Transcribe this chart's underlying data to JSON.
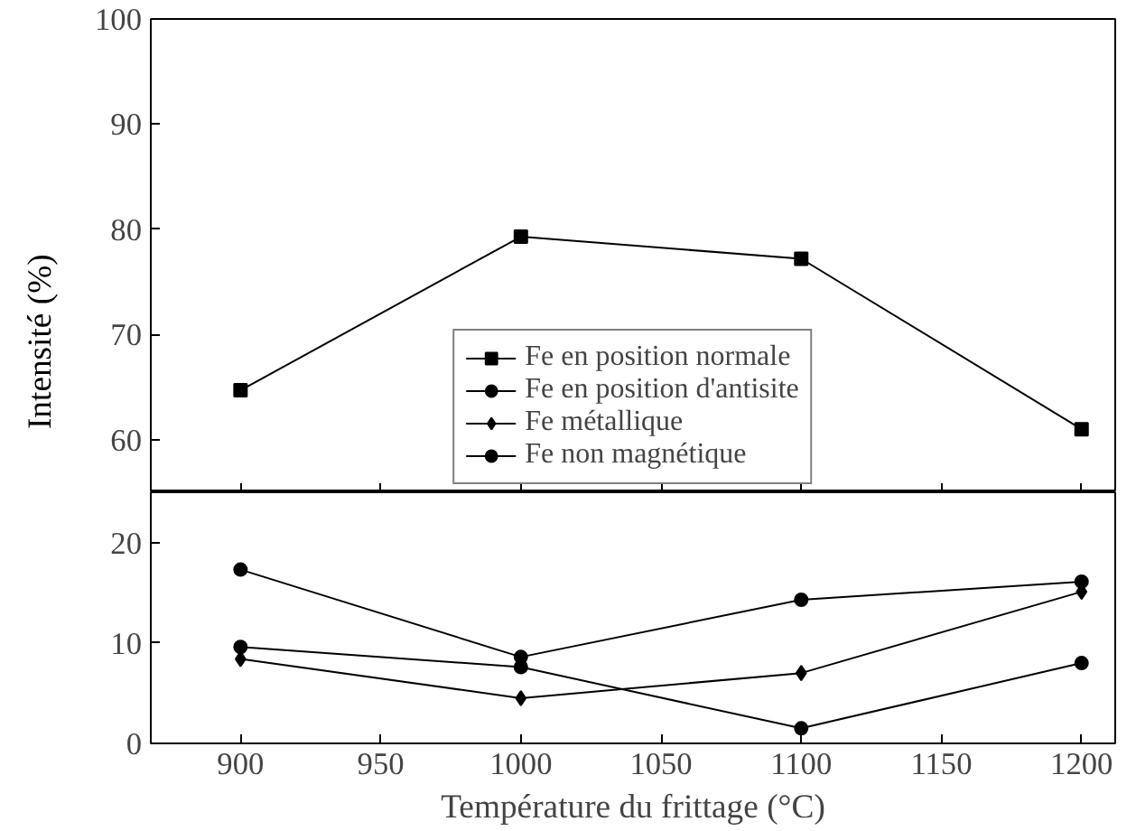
{
  "chart_data": [
    {
      "type": "line",
      "x": [
        900,
        1000,
        1100,
        1200
      ],
      "xlim": [
        868,
        1212
      ],
      "xticks": [
        900,
        950,
        1000,
        1050,
        1100,
        1150,
        1200
      ],
      "ylim": [
        55,
        100
      ],
      "yticks": [
        60,
        70,
        80,
        90,
        100
      ],
      "tick_labels": "y",
      "ylabel": "Intensité (%)",
      "legend": "bottom center",
      "line_style": "solid",
      "series": [
        {
          "name": "Fe en position normale",
          "color": "#000000",
          "marker": "square",
          "values": [
            64.7,
            79.3,
            77.2,
            61.0
          ]
        }
      ]
    },
    {
      "type": "line",
      "x": [
        900,
        1000,
        1100,
        1200
      ],
      "xlim": [
        868,
        1212
      ],
      "xticks": [
        900,
        950,
        1000,
        1050,
        1100,
        1150,
        1200
      ],
      "ylim": [
        0,
        25
      ],
      "yticks": [
        0,
        10,
        20
      ],
      "xlabel": "Température du frittage (°C)",
      "legend": "top",
      "line_style": "solid",
      "series": [
        {
          "name": "Fe en position d'antisite",
          "color": "#000000",
          "marker": "circle",
          "values": [
            17.3,
            8.6,
            14.3,
            16.1
          ]
        },
        {
          "name": "Fe métallique",
          "color": "#000000",
          "marker": "diamond",
          "values": [
            8.4,
            4.5,
            7.0,
            15.1
          ]
        },
        {
          "name": "Fe non magnétique",
          "color": "#000000",
          "marker": "circle",
          "values": [
            9.6,
            7.6,
            1.5,
            8.0
          ]
        }
      ]
    }
  ]
}
